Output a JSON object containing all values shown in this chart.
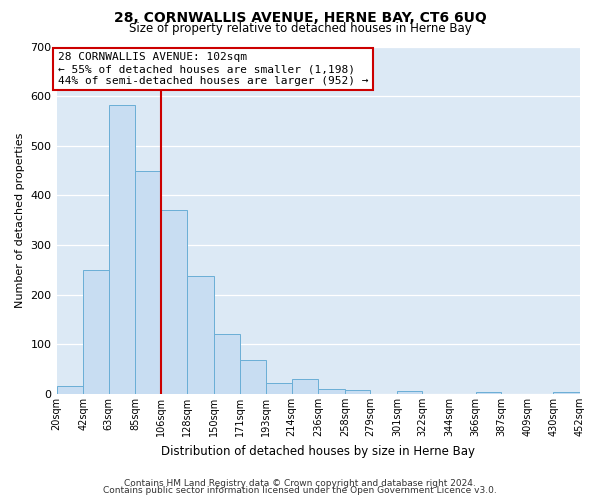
{
  "title": "28, CORNWALLIS AVENUE, HERNE BAY, CT6 6UQ",
  "subtitle": "Size of property relative to detached houses in Herne Bay",
  "xlabel": "Distribution of detached houses by size in Herne Bay",
  "ylabel": "Number of detached properties",
  "bar_color": "#c8ddf2",
  "bar_edge_color": "#6aaed6",
  "background_color": "#dce9f5",
  "fig_background_color": "#ffffff",
  "grid_color": "#ffffff",
  "bins": [
    20,
    42,
    63,
    85,
    106,
    128,
    150,
    171,
    193,
    214,
    236,
    258,
    279,
    301,
    322,
    344,
    366,
    387,
    409,
    430,
    452
  ],
  "counts": [
    17,
    249,
    583,
    449,
    371,
    238,
    120,
    68,
    23,
    30,
    11,
    9,
    0,
    7,
    0,
    0,
    5,
    0,
    0,
    5
  ],
  "vline_x": 106,
  "annotation_line1": "28 CORNWALLIS AVENUE: 102sqm",
  "annotation_line2": "← 55% of detached houses are smaller (1,198)",
  "annotation_line3": "44% of semi-detached houses are larger (952) →",
  "annotation_box_color": "#ffffff",
  "annotation_box_edge_color": "#cc0000",
  "vline_color": "#cc0000",
  "footer1": "Contains HM Land Registry data © Crown copyright and database right 2024.",
  "footer2": "Contains public sector information licensed under the Open Government Licence v3.0.",
  "ylim": [
    0,
    700
  ],
  "yticks": [
    0,
    100,
    200,
    300,
    400,
    500,
    600,
    700
  ],
  "tick_labels": [
    "20sqm",
    "42sqm",
    "63sqm",
    "85sqm",
    "106sqm",
    "128sqm",
    "150sqm",
    "171sqm",
    "193sqm",
    "214sqm",
    "236sqm",
    "258sqm",
    "279sqm",
    "301sqm",
    "322sqm",
    "344sqm",
    "366sqm",
    "387sqm",
    "409sqm",
    "430sqm",
    "452sqm"
  ]
}
